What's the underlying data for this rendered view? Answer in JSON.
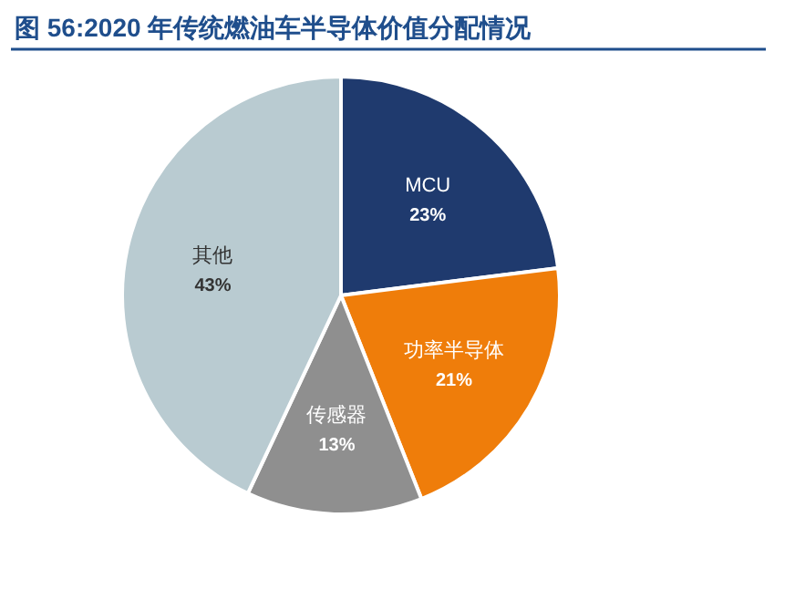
{
  "chart_data": {
    "type": "pie",
    "title": "图 56:2020 年传统燃油车半导体价值分配情况",
    "categories": [
      "MCU",
      "功率半导体",
      "传感器",
      "其他"
    ],
    "values": [
      23,
      21,
      13,
      43
    ],
    "colors": [
      "#1f3a6e",
      "#ef7d0a",
      "#8f8f8f",
      "#b9cbd1"
    ],
    "value_labels": [
      "23%",
      "21%",
      "13%",
      "43%"
    ]
  }
}
